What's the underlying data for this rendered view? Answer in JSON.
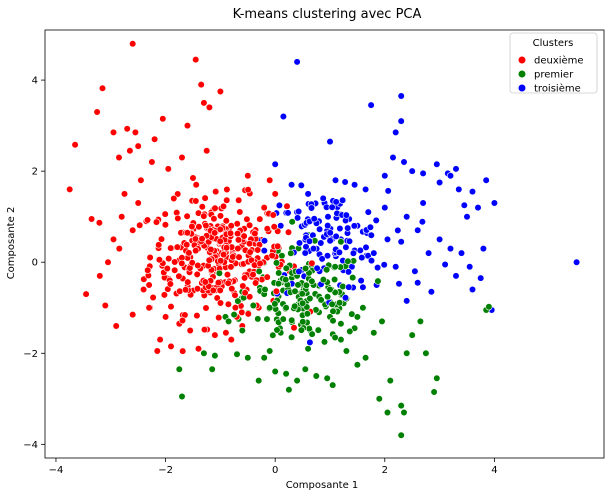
{
  "chart_data": {
    "type": "scatter",
    "title": "K-means clustering avec PCA",
    "xlabel": "Composante 1",
    "ylabel": "Composante 2",
    "xlim": [
      -4.2,
      6.0
    ],
    "ylim": [
      -4.3,
      5.1
    ],
    "x_ticks": [
      -4,
      -2,
      0,
      2,
      4
    ],
    "y_ticks": [
      -4,
      -2,
      0,
      2,
      4
    ],
    "grid": false,
    "legend": {
      "title": "Clusters",
      "placement": "top-right",
      "entries": [
        "deuxième",
        "premier",
        "troisième"
      ]
    },
    "series": [
      {
        "name": "deuxième",
        "color": "#ff0000",
        "points": [
          [
            -3.75,
            1.6
          ],
          [
            -3.65,
            2.58
          ],
          [
            -3.45,
            -0.7
          ],
          [
            -3.35,
            0.95
          ],
          [
            -3.25,
            3.3
          ],
          [
            -3.15,
            3.82
          ],
          [
            -3.1,
            -0.95
          ],
          [
            -3.05,
            0.0
          ],
          [
            -2.95,
            2.85
          ],
          [
            -2.9,
            -1.4
          ],
          [
            -2.85,
            2.3
          ],
          [
            -2.8,
            1.0
          ],
          [
            -2.75,
            1.5
          ],
          [
            -2.7,
            2.93
          ],
          [
            -2.65,
            2.45
          ],
          [
            -2.6,
            4.8
          ],
          [
            -2.55,
            2.85
          ],
          [
            -2.5,
            2.55
          ],
          [
            -2.45,
            1.8
          ],
          [
            -2.4,
            -0.6
          ],
          [
            -2.3,
            -1.0
          ],
          [
            -2.25,
            2.2
          ],
          [
            -2.2,
            2.7
          ],
          [
            -2.15,
            -1.95
          ],
          [
            -2.1,
            -1.7
          ],
          [
            -2.05,
            3.15
          ],
          [
            -1.95,
            2.05
          ],
          [
            -1.9,
            -1.85
          ],
          [
            -1.75,
            -1.35
          ],
          [
            -1.7,
            2.3
          ],
          [
            -1.6,
            3.0
          ],
          [
            -1.55,
            -1.5
          ],
          [
            -1.45,
            4.45
          ],
          [
            -1.35,
            3.9
          ],
          [
            -1.3,
            3.5
          ],
          [
            -1.25,
            2.45
          ],
          [
            -1.2,
            3.4
          ],
          [
            -1.0,
            3.75
          ],
          [
            -0.8,
            -1.7
          ],
          [
            -0.6,
            -1.4
          ],
          [
            -0.5,
            1.9
          ],
          [
            -0.1,
            1.8
          ],
          [
            -1.4,
            -1.9
          ],
          [
            -0.9,
            -1.55
          ],
          [
            -3.2,
            -0.3
          ],
          [
            -2.95,
            0.5
          ],
          [
            -2.6,
            0.7
          ],
          [
            -2.5,
            1.3
          ],
          [
            -2.35,
            0.9
          ],
          [
            -2.6,
            -1.15
          ],
          [
            -2.0,
            -1.2
          ],
          [
            -2.3,
            -0.5
          ],
          [
            -1.85,
            1.4
          ],
          [
            -1.5,
            1.85
          ],
          [
            -1.1,
            -1.6
          ],
          [
            -0.7,
            -1.2
          ],
          [
            -0.3,
            -1.0
          ],
          [
            0.0,
            1.5
          ],
          [
            -0.2,
            1.2
          ]
        ]
      },
      {
        "name": "premier",
        "color": "#008000",
        "points": [
          [
            -1.75,
            -2.35
          ],
          [
            -1.7,
            -2.95
          ],
          [
            -1.3,
            -2.0
          ],
          [
            -1.15,
            -2.35
          ],
          [
            -1.1,
            -2.05
          ],
          [
            -0.85,
            -1.3
          ],
          [
            -0.75,
            -1.15
          ],
          [
            -0.6,
            -1.5
          ],
          [
            -0.5,
            -2.1
          ],
          [
            -0.3,
            -2.6
          ],
          [
            -0.2,
            -2.1
          ],
          [
            -0.1,
            -1.95
          ],
          [
            0.0,
            -2.4
          ],
          [
            0.2,
            -2.45
          ],
          [
            0.25,
            -2.8
          ],
          [
            0.4,
            -2.6
          ],
          [
            0.55,
            -2.35
          ],
          [
            0.75,
            -2.5
          ],
          [
            0.95,
            -2.55
          ],
          [
            1.05,
            -2.7
          ],
          [
            1.2,
            -1.7
          ],
          [
            1.3,
            -1.95
          ],
          [
            1.5,
            -2.25
          ],
          [
            1.65,
            -2.1
          ],
          [
            1.9,
            -3.0
          ],
          [
            2.05,
            -3.3
          ],
          [
            2.3,
            -3.15
          ],
          [
            2.3,
            -3.8
          ],
          [
            2.35,
            -3.3
          ],
          [
            2.1,
            -2.6
          ],
          [
            2.4,
            -2.0
          ],
          [
            2.5,
            -1.6
          ],
          [
            2.65,
            -1.3
          ],
          [
            2.75,
            -2.0
          ],
          [
            2.9,
            -2.85
          ],
          [
            2.95,
            -2.55
          ],
          [
            3.85,
            -1.05
          ],
          [
            3.9,
            -0.98
          ],
          [
            1.95,
            -1.3
          ],
          [
            1.8,
            -1.55
          ],
          [
            1.45,
            -1.45
          ],
          [
            1.2,
            -1.35
          ],
          [
            0.9,
            -1.75
          ],
          [
            0.6,
            -1.9
          ],
          [
            0.3,
            -1.65
          ],
          [
            0.1,
            -1.55
          ],
          [
            -0.15,
            -1.25
          ],
          [
            -0.4,
            -0.95
          ],
          [
            -0.6,
            -0.65
          ],
          [
            -0.2,
            -0.7
          ],
          [
            0.1,
            -0.4
          ],
          [
            0.4,
            -0.3
          ],
          [
            0.7,
            -0.5
          ],
          [
            1.0,
            -0.6
          ],
          [
            1.3,
            -0.8
          ],
          [
            1.6,
            -1.0
          ],
          [
            0.8,
            -1.1
          ],
          [
            0.5,
            -0.9
          ],
          [
            0.2,
            -1.0
          ],
          [
            -0.1,
            -1.0
          ],
          [
            1.0,
            -1.2
          ],
          [
            1.5,
            -1.2
          ],
          [
            0.6,
            0.6
          ],
          [
            1.2,
            0.45
          ],
          [
            0.05,
            0.25
          ]
        ]
      },
      {
        "name": "troisième",
        "color": "#0000ff",
        "points": [
          [
            0.15,
            3.2
          ],
          [
            0.4,
            4.4
          ],
          [
            1.0,
            2.65
          ],
          [
            1.45,
            1.7
          ],
          [
            1.65,
            1.6
          ],
          [
            1.75,
            3.45
          ],
          [
            2.0,
            1.9
          ],
          [
            2.15,
            2.3
          ],
          [
            2.2,
            2.85
          ],
          [
            2.3,
            3.1
          ],
          [
            2.3,
            3.65
          ],
          [
            2.35,
            2.2
          ],
          [
            2.5,
            2.0
          ],
          [
            2.7,
            1.95
          ],
          [
            2.95,
            2.15
          ],
          [
            3.0,
            1.75
          ],
          [
            3.15,
            1.95
          ],
          [
            3.2,
            1.9
          ],
          [
            3.3,
            2.05
          ],
          [
            3.35,
            1.6
          ],
          [
            3.45,
            1.25
          ],
          [
            3.5,
            1.0
          ],
          [
            3.6,
            1.55
          ],
          [
            3.7,
            1.2
          ],
          [
            3.8,
            0.3
          ],
          [
            3.85,
            1.8
          ],
          [
            3.95,
            -1.05
          ],
          [
            4.0,
            1.3
          ],
          [
            5.5,
            0.0
          ],
          [
            3.6,
            -0.6
          ],
          [
            3.3,
            -0.3
          ],
          [
            3.1,
            -0.05
          ],
          [
            2.85,
            -0.65
          ],
          [
            2.6,
            -0.45
          ],
          [
            2.4,
            -0.85
          ],
          [
            2.55,
            -0.2
          ],
          [
            2.2,
            -0.1
          ],
          [
            2.05,
            0.5
          ],
          [
            2.3,
            0.45
          ],
          [
            2.6,
            0.7
          ],
          [
            2.8,
            0.2
          ],
          [
            3.0,
            0.5
          ],
          [
            3.2,
            0.3
          ],
          [
            3.4,
            0.2
          ],
          [
            3.55,
            -0.1
          ],
          [
            3.75,
            -0.35
          ],
          [
            1.85,
            -0.5
          ],
          [
            1.6,
            -0.55
          ],
          [
            1.4,
            -0.1
          ],
          [
            1.8,
            0.2
          ],
          [
            1.5,
            0.8
          ],
          [
            1.2,
            0.5
          ],
          [
            0.9,
            1.3
          ],
          [
            0.6,
            1.5
          ],
          [
            0.3,
            1.7
          ],
          [
            0.0,
            2.15
          ],
          [
            0.8,
            0.9
          ],
          [
            1.7,
            1.1
          ],
          [
            2.0,
            1.2
          ],
          [
            2.4,
            1.0
          ],
          [
            2.7,
            1.3
          ],
          [
            1.1,
            1.8
          ],
          [
            0.4,
            1.1
          ],
          [
            0.1,
            0.8
          ],
          [
            0.7,
            0.3
          ],
          [
            1.35,
            0.95
          ]
        ]
      }
    ],
    "dense_clusters": [
      {
        "series": "deuxième",
        "center": [
          -1.05,
          0.15
        ],
        "spread": [
          0.62,
          0.62
        ],
        "count": 340
      },
      {
        "series": "premier",
        "center": [
          0.55,
          -0.75
        ],
        "spread": [
          0.55,
          0.5
        ],
        "count": 150
      },
      {
        "series": "troisième",
        "center": [
          0.95,
          0.45
        ],
        "spread": [
          0.55,
          0.55
        ],
        "count": 120
      }
    ]
  }
}
